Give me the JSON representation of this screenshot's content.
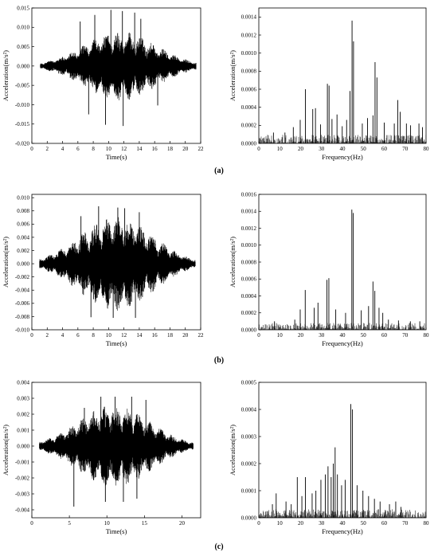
{
  "figure": {
    "captions": [
      "(a)",
      "(b)",
      "(c)"
    ]
  },
  "chart_data": [
    {
      "id": "a-time",
      "type": "line",
      "signal": "time",
      "xlabel": "Time(s)",
      "ylabel": "Acceleration(m/s²)",
      "xlim": [
        0,
        22
      ],
      "ylim": [
        -0.02,
        0.015
      ],
      "xticks": [
        0,
        2,
        4,
        6,
        8,
        10,
        12,
        14,
        16,
        18,
        20,
        22
      ],
      "yticks": [
        -0.02,
        -0.015,
        -0.01,
        -0.005,
        0.0,
        0.005,
        0.01,
        0.015
      ],
      "ytick_decimals": 3,
      "duration": [
        1.1,
        21.4
      ],
      "peak_time": 11.5,
      "envelope_max": 0.009,
      "envelope_min": -0.009,
      "peaks": [
        {
          "x": 6.3,
          "y": 0.0115
        },
        {
          "x": 8.2,
          "y": 0.0132
        },
        {
          "x": 10.3,
          "y": 0.0145
        },
        {
          "x": 11.8,
          "y": 0.0142
        },
        {
          "x": 13.4,
          "y": 0.0138
        },
        {
          "x": 14.2,
          "y": 0.0122
        },
        {
          "x": 9.6,
          "y": -0.0152
        },
        {
          "x": 11.9,
          "y": -0.0155
        },
        {
          "x": 7.4,
          "y": -0.0125
        },
        {
          "x": 16.4,
          "y": -0.0102
        }
      ],
      "grid": false
    },
    {
      "id": "a-freq",
      "type": "line",
      "signal": "spectrum",
      "xlabel": "Frequency(Hz)",
      "ylabel": "Acceleration(m/s²)",
      "xlim": [
        0,
        80
      ],
      "ylim": [
        0,
        0.0015
      ],
      "xticks": [
        0,
        10,
        20,
        30,
        40,
        50,
        60,
        70,
        80
      ],
      "yticks": [
        0.0,
        0.0002,
        0.0004,
        0.0006,
        0.0008,
        0.001,
        0.0012,
        0.0014
      ],
      "ytick_decimals": 4,
      "noise_floor": 6e-05,
      "peaks": [
        {
          "x": 7.0,
          "y": 0.00012
        },
        {
          "x": 12.5,
          "y": 0.00012
        },
        {
          "x": 16.5,
          "y": 0.00018
        },
        {
          "x": 19.8,
          "y": 0.00026
        },
        {
          "x": 22.3,
          "y": 0.0006
        },
        {
          "x": 25.8,
          "y": 0.00038
        },
        {
          "x": 27.1,
          "y": 0.00039
        },
        {
          "x": 29.5,
          "y": 0.00021
        },
        {
          "x": 32.8,
          "y": 0.00066
        },
        {
          "x": 33.6,
          "y": 0.00064
        },
        {
          "x": 35.0,
          "y": 0.00027
        },
        {
          "x": 37.4,
          "y": 0.00032
        },
        {
          "x": 39.9,
          "y": 0.00019
        },
        {
          "x": 42.0,
          "y": 0.00026
        },
        {
          "x": 43.6,
          "y": 0.00058
        },
        {
          "x": 44.6,
          "y": 0.00136
        },
        {
          "x": 45.3,
          "y": 0.00113
        },
        {
          "x": 49.5,
          "y": 0.00022
        },
        {
          "x": 52.0,
          "y": 0.00028
        },
        {
          "x": 54.6,
          "y": 0.00031
        },
        {
          "x": 55.6,
          "y": 0.0009
        },
        {
          "x": 56.5,
          "y": 0.00073
        },
        {
          "x": 60.0,
          "y": 0.00023
        },
        {
          "x": 64.8,
          "y": 0.00022
        },
        {
          "x": 66.5,
          "y": 0.00048
        },
        {
          "x": 67.6,
          "y": 0.00035
        },
        {
          "x": 70.6,
          "y": 0.00022
        },
        {
          "x": 72.6,
          "y": 0.0002
        },
        {
          "x": 76.6,
          "y": 0.00022
        },
        {
          "x": 78.3,
          "y": 0.00018
        }
      ],
      "grid": false
    },
    {
      "id": "b-time",
      "type": "line",
      "signal": "time",
      "xlabel": "Time(s)",
      "ylabel": "Acceleration(m/s²)",
      "xlim": [
        0,
        22
      ],
      "ylim": [
        -0.01,
        0.0105
      ],
      "xticks": [
        0,
        2,
        4,
        6,
        8,
        10,
        12,
        14,
        16,
        18,
        20,
        22
      ],
      "yticks": [
        -0.01,
        -0.008,
        -0.006,
        -0.004,
        -0.002,
        0.0,
        0.002,
        0.004,
        0.006,
        0.008,
        0.01
      ],
      "ytick_decimals": 3,
      "duration": [
        1.0,
        21.3
      ],
      "peak_time": 11.0,
      "envelope_max": 0.0072,
      "envelope_min": -0.0072,
      "peaks": [
        {
          "x": 8.7,
          "y": 0.0087
        },
        {
          "x": 11.2,
          "y": 0.0085
        },
        {
          "x": 12.1,
          "y": 0.0084
        },
        {
          "x": 6.4,
          "y": 0.0072
        },
        {
          "x": 14.0,
          "y": 0.0078
        },
        {
          "x": 7.7,
          "y": -0.0081
        },
        {
          "x": 10.6,
          "y": -0.0082
        },
        {
          "x": 13.5,
          "y": -0.0082
        }
      ],
      "grid": false
    },
    {
      "id": "b-freq",
      "type": "line",
      "signal": "spectrum",
      "xlabel": "Frequency(Hz)",
      "ylabel": "Acceleration(m/s²)",
      "xlim": [
        0,
        80
      ],
      "ylim": [
        0,
        0.0016
      ],
      "xticks": [
        0,
        10,
        20,
        30,
        40,
        50,
        60,
        70,
        80
      ],
      "yticks": [
        0.0,
        0.0002,
        0.0004,
        0.0006,
        0.0008,
        0.001,
        0.0012,
        0.0014,
        0.0016
      ],
      "ytick_decimals": 4,
      "noise_floor": 5e-05,
      "peaks": [
        {
          "x": 7.5,
          "y": 0.0001
        },
        {
          "x": 17.2,
          "y": 0.00012
        },
        {
          "x": 19.8,
          "y": 0.00024
        },
        {
          "x": 22.2,
          "y": 0.00047
        },
        {
          "x": 26.5,
          "y": 0.00026
        },
        {
          "x": 28.3,
          "y": 0.00032
        },
        {
          "x": 32.6,
          "y": 0.00059
        },
        {
          "x": 33.5,
          "y": 0.00061
        },
        {
          "x": 36.8,
          "y": 0.00024
        },
        {
          "x": 41.5,
          "y": 0.0002
        },
        {
          "x": 44.5,
          "y": 0.00142
        },
        {
          "x": 45.2,
          "y": 0.00138
        },
        {
          "x": 49.0,
          "y": 0.00023
        },
        {
          "x": 52.5,
          "y": 0.00028
        },
        {
          "x": 54.6,
          "y": 0.00057
        },
        {
          "x": 55.5,
          "y": 0.00046
        },
        {
          "x": 57.5,
          "y": 0.00026
        },
        {
          "x": 59.3,
          "y": 0.0002
        },
        {
          "x": 62.0,
          "y": 0.00012
        },
        {
          "x": 66.8,
          "y": 0.00011
        },
        {
          "x": 72.5,
          "y": 0.0001
        },
        {
          "x": 77.0,
          "y": 0.0001
        }
      ],
      "grid": false
    },
    {
      "id": "c-time",
      "type": "line",
      "signal": "time",
      "xlabel": "Time(s)",
      "ylabel": "Acceleration(m/s²)",
      "xlim": [
        0,
        22.5
      ],
      "ylim": [
        -0.0045,
        0.004
      ],
      "xticks": [
        0,
        5,
        10,
        15,
        20
      ],
      "yticks": [
        -0.004,
        -0.003,
        -0.002,
        -0.001,
        0.0,
        0.001,
        0.002,
        0.003,
        0.004
      ],
      "ytick_decimals": 3,
      "duration": [
        1.0,
        21.5
      ],
      "peak_time": 11.0,
      "envelope_max": 0.0026,
      "envelope_min": -0.0026,
      "peaks": [
        {
          "x": 9.2,
          "y": 0.0031
        },
        {
          "x": 11.1,
          "y": 0.0031
        },
        {
          "x": 13.3,
          "y": 0.0031
        },
        {
          "x": 15.2,
          "y": 0.0029
        },
        {
          "x": 7.0,
          "y": 0.0024
        },
        {
          "x": 5.6,
          "y": -0.0038
        },
        {
          "x": 9.8,
          "y": -0.0035
        },
        {
          "x": 12.2,
          "y": -0.0035
        },
        {
          "x": 14.0,
          "y": -0.0033
        }
      ],
      "grid": false
    },
    {
      "id": "c-freq",
      "type": "line",
      "signal": "spectrum",
      "xlabel": "Frequency(Hz)",
      "ylabel": "Acceleration(m/s²)",
      "xlim": [
        0,
        80
      ],
      "ylim": [
        0,
        0.0005
      ],
      "xticks": [
        0,
        10,
        20,
        30,
        40,
        50,
        60,
        70,
        80
      ],
      "yticks": [
        0.0,
        0.0001,
        0.0002,
        0.0003,
        0.0004,
        0.0005
      ],
      "ytick_decimals": 4,
      "noise_floor": 2e-05,
      "peaks": [
        {
          "x": 6.5,
          "y": 5e-05
        },
        {
          "x": 8.3,
          "y": 9e-05
        },
        {
          "x": 13.0,
          "y": 6e-05
        },
        {
          "x": 15.5,
          "y": 5e-05
        },
        {
          "x": 18.4,
          "y": 0.00015
        },
        {
          "x": 20.6,
          "y": 8e-05
        },
        {
          "x": 22.3,
          "y": 0.00015
        },
        {
          "x": 25.5,
          "y": 9e-05
        },
        {
          "x": 27.3,
          "y": 0.0001
        },
        {
          "x": 29.7,
          "y": 0.00014
        },
        {
          "x": 31.8,
          "y": 0.00016
        },
        {
          "x": 33.1,
          "y": 0.00019
        },
        {
          "x": 34.6,
          "y": 0.00015
        },
        {
          "x": 35.6,
          "y": 0.0002
        },
        {
          "x": 36.5,
          "y": 0.00026
        },
        {
          "x": 37.6,
          "y": 0.00016
        },
        {
          "x": 39.6,
          "y": 0.00012
        },
        {
          "x": 41.3,
          "y": 0.00014
        },
        {
          "x": 44.0,
          "y": 0.00042
        },
        {
          "x": 44.8,
          "y": 0.0004
        },
        {
          "x": 47.0,
          "y": 0.00012
        },
        {
          "x": 49.8,
          "y": 0.0001
        },
        {
          "x": 52.5,
          "y": 8e-05
        },
        {
          "x": 55.3,
          "y": 7e-05
        },
        {
          "x": 58.0,
          "y": 6e-05
        },
        {
          "x": 62.5,
          "y": 5e-05
        },
        {
          "x": 65.5,
          "y": 6e-05
        },
        {
          "x": 68.0,
          "y": 4e-05
        }
      ],
      "grid": false
    }
  ]
}
